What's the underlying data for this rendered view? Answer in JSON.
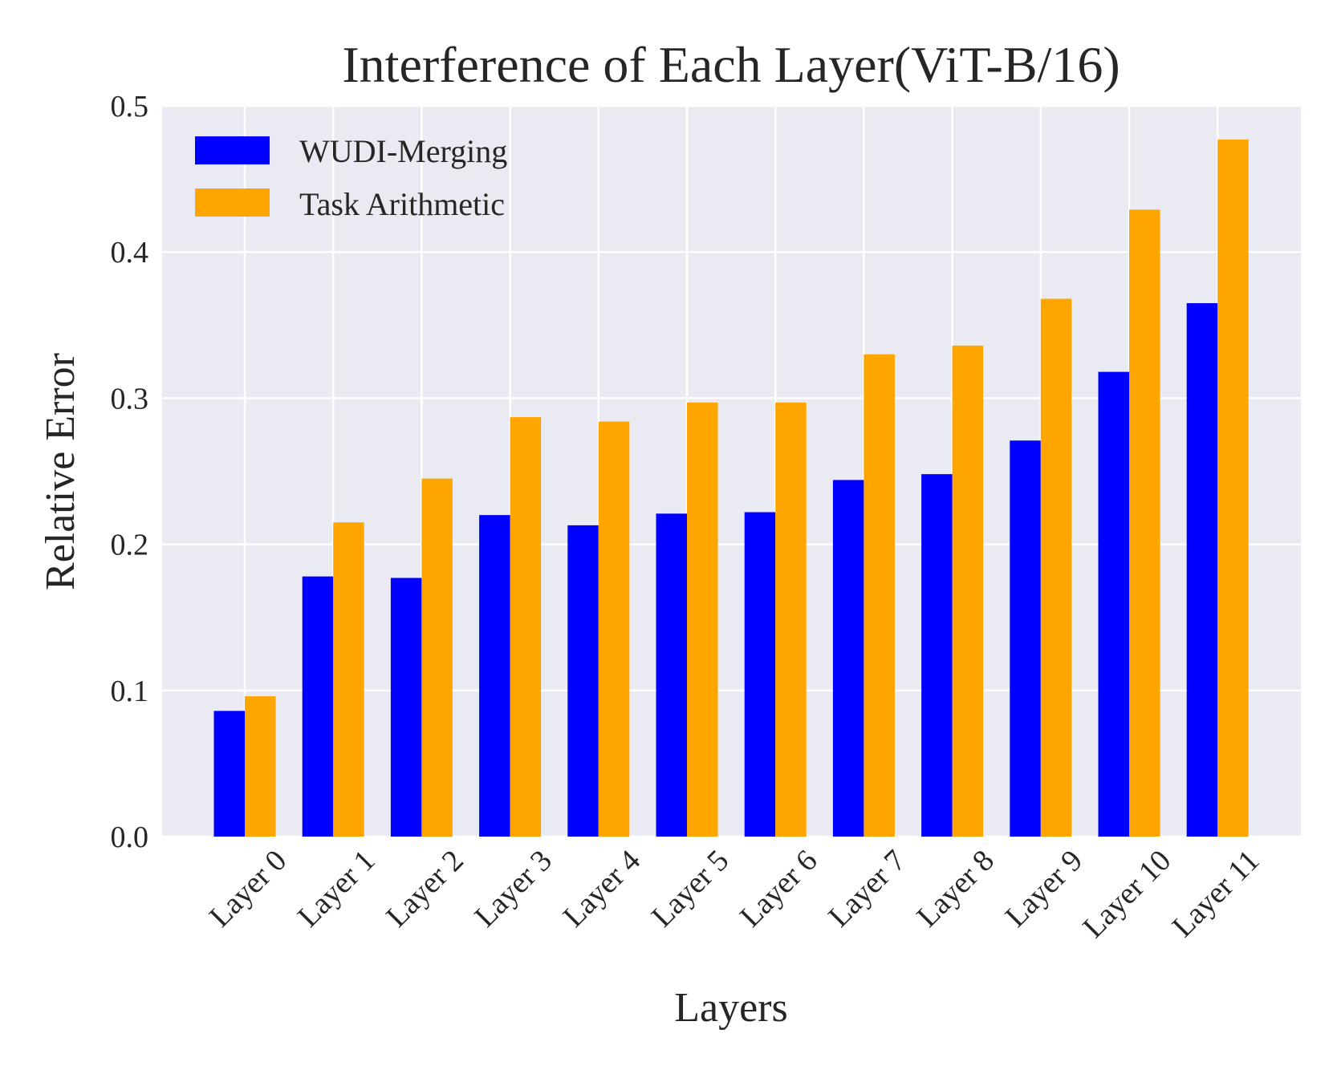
{
  "chart_data": {
    "type": "bar",
    "title": "Interference of Each Layer(ViT-B/16)",
    "xlabel": "Layers",
    "ylabel": "Relative Error",
    "ylim": [
      0,
      0.5
    ],
    "yticks": [
      "0.0",
      "0.1",
      "0.2",
      "0.3",
      "0.4",
      "0.5"
    ],
    "grid": true,
    "legend_position": "top-left",
    "categories": [
      "Layer 0",
      "Layer 1",
      "Layer 2",
      "Layer 3",
      "Layer 4",
      "Layer 5",
      "Layer 6",
      "Layer 7",
      "Layer 8",
      "Layer 9",
      "Layer 10",
      "Layer 11"
    ],
    "series": [
      {
        "name": "WUDI-Merging",
        "color": "#0000ff",
        "values": [
          0.086,
          0.178,
          0.177,
          0.22,
          0.213,
          0.221,
          0.222,
          0.244,
          0.248,
          0.271,
          0.318,
          0.365
        ]
      },
      {
        "name": "Task Arithmetic",
        "color": "#ffa500",
        "values": [
          0.096,
          0.215,
          0.245,
          0.287,
          0.284,
          0.297,
          0.297,
          0.33,
          0.336,
          0.368,
          0.429,
          0.477
        ]
      }
    ]
  }
}
